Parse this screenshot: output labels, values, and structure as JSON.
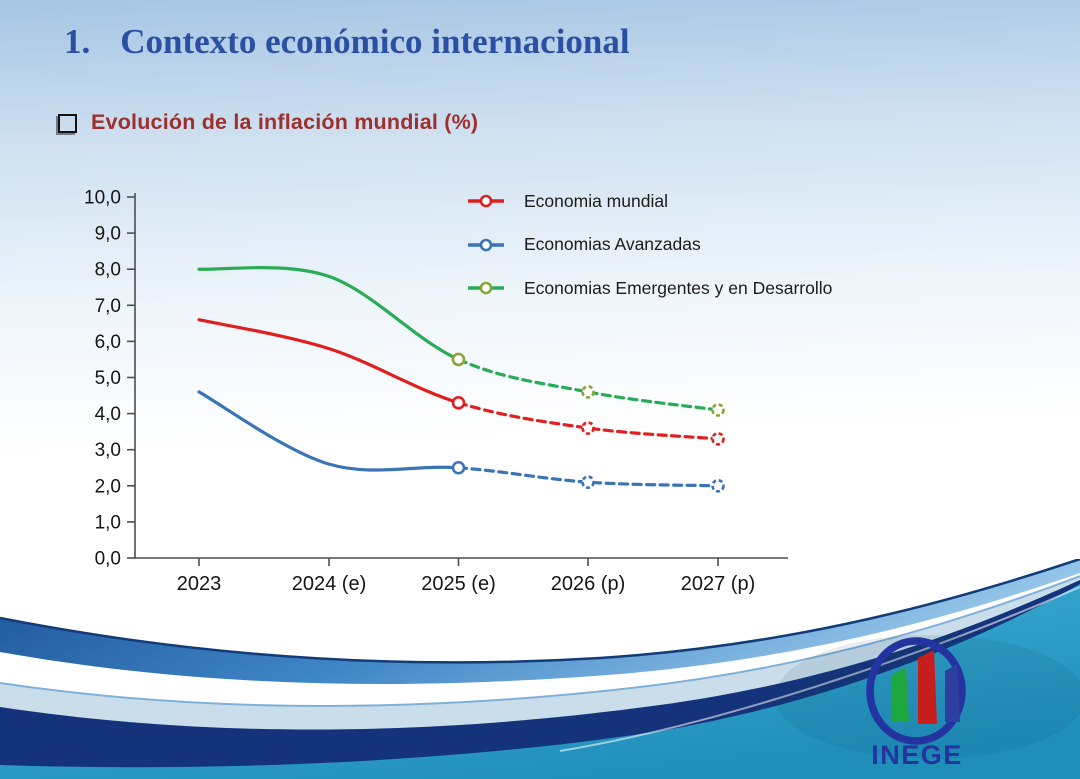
{
  "slide": {
    "number": "1.",
    "title": "Contexto económico internacional",
    "subtitle": "Evolución de la inflación mundial (%)"
  },
  "chart_data": {
    "type": "line",
    "title": "Evolución de la inflación mundial (%)",
    "categories": [
      "2023",
      "2024 (e)",
      "2025 (e)",
      "2026 (p)",
      "2027 (p)"
    ],
    "ylim": [
      0,
      10
    ],
    "ytick_step": 1,
    "ytick_labels": [
      "0,0",
      "1,0",
      "2,0",
      "3,0",
      "4,0",
      "5,0",
      "6,0",
      "7,0",
      "8,0",
      "9,0",
      "10,0"
    ],
    "grid": false,
    "legend_position": "top-right-inside",
    "line_style": "solid through 2025, dashed projection 2025-2027, open circle markers from 2025",
    "series": [
      {
        "name": "Economia mundial",
        "color": "#e01f1f",
        "marker_color": "#e01f1f",
        "values": [
          6.6,
          5.8,
          4.3,
          3.6,
          3.3
        ],
        "solid_until": 2
      },
      {
        "name": "Economias Avanzadas",
        "color": "#3b74b5",
        "marker_color": "#3b74b5",
        "values": [
          4.6,
          2.6,
          2.5,
          2.1,
          2.0
        ],
        "solid_until": 2
      },
      {
        "name": "Economias Emergentes y en Desarrollo",
        "color": "#2aab55",
        "marker_color": "#8fa23a",
        "values": [
          8.0,
          7.8,
          5.5,
          4.6,
          4.1
        ],
        "solid_until": 2
      }
    ]
  },
  "logo": {
    "text": "INEGE",
    "ring_color": "#2333a0",
    "bar_colors": {
      "green": "#1ea73f",
      "red": "#c61d1d",
      "blue": "#2e3fa0"
    }
  },
  "theme": {
    "title_color": "#2a51a1",
    "subtitle_color": "#9d302d",
    "wave_blue": "#2f79bd",
    "wave_pale": "#c9ddeb",
    "wave_navy": "#15337a",
    "wave_teal": "#2aa3cc"
  }
}
